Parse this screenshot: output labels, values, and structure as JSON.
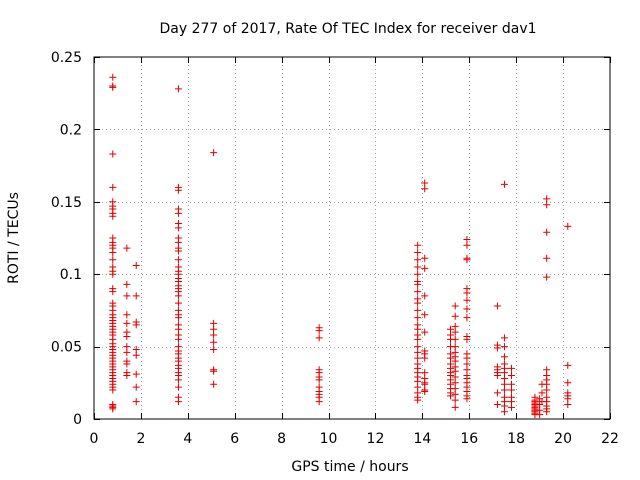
{
  "chart_data": {
    "type": "scatter",
    "title": "Day 277 of 2017, Rate Of TEC Index for receiver dav1",
    "xlabel": "GPS time / hours",
    "ylabel": "ROTI / TECUs",
    "xlim": [
      0,
      22
    ],
    "ylim": [
      0,
      0.25
    ],
    "xticks": [
      0,
      2,
      4,
      6,
      8,
      10,
      12,
      14,
      16,
      18,
      20,
      22
    ],
    "yticks": [
      0,
      0.05,
      0.1,
      0.15,
      0.2,
      0.25
    ],
    "xtick_labels": [
      "0",
      "2",
      "4",
      "6",
      "8",
      "10",
      "12",
      "14",
      "16",
      "18",
      "20",
      "22"
    ],
    "ytick_labels": [
      "0",
      "0.05",
      "0.1",
      "0.15",
      "0.2",
      "0.25"
    ],
    "grid": true,
    "marker": "+",
    "color": "#e00000",
    "series": [
      {
        "name": "ROTI",
        "points": [
          [
            0.8,
            0.236
          ],
          [
            0.8,
            0.23
          ],
          [
            0.8,
            0.229
          ],
          [
            0.8,
            0.183
          ],
          [
            0.8,
            0.16
          ],
          [
            0.8,
            0.15
          ],
          [
            0.8,
            0.147
          ],
          [
            0.8,
            0.145
          ],
          [
            0.8,
            0.142
          ],
          [
            0.8,
            0.14
          ],
          [
            0.8,
            0.125
          ],
          [
            0.8,
            0.122
          ],
          [
            0.8,
            0.12
          ],
          [
            0.8,
            0.118
          ],
          [
            0.8,
            0.115
          ],
          [
            0.8,
            0.11
          ],
          [
            0.8,
            0.105
          ],
          [
            0.8,
            0.102
          ],
          [
            0.8,
            0.1
          ],
          [
            0.8,
            0.09
          ],
          [
            0.8,
            0.088
          ],
          [
            0.8,
            0.08
          ],
          [
            0.8,
            0.078
          ],
          [
            0.8,
            0.075
          ],
          [
            0.8,
            0.072
          ],
          [
            0.8,
            0.07
          ],
          [
            0.8,
            0.068
          ],
          [
            0.8,
            0.066
          ],
          [
            0.8,
            0.064
          ],
          [
            0.8,
            0.062
          ],
          [
            0.8,
            0.06
          ],
          [
            0.8,
            0.058
          ],
          [
            0.8,
            0.055
          ],
          [
            0.8,
            0.052
          ],
          [
            0.8,
            0.05
          ],
          [
            0.8,
            0.048
          ],
          [
            0.8,
            0.046
          ],
          [
            0.8,
            0.044
          ],
          [
            0.8,
            0.042
          ],
          [
            0.8,
            0.04
          ],
          [
            0.8,
            0.038
          ],
          [
            0.8,
            0.036
          ],
          [
            0.8,
            0.034
          ],
          [
            0.8,
            0.032
          ],
          [
            0.8,
            0.03
          ],
          [
            0.8,
            0.028
          ],
          [
            0.8,
            0.026
          ],
          [
            0.8,
            0.024
          ],
          [
            0.8,
            0.022
          ],
          [
            0.8,
            0.02
          ],
          [
            0.8,
            0.01
          ],
          [
            0.8,
            0.009
          ],
          [
            0.8,
            0.008
          ],
          [
            0.8,
            0.007
          ],
          [
            1.4,
            0.118
          ],
          [
            1.4,
            0.093
          ],
          [
            1.4,
            0.085
          ],
          [
            1.4,
            0.072
          ],
          [
            1.4,
            0.066
          ],
          [
            1.4,
            0.06
          ],
          [
            1.4,
            0.057
          ],
          [
            1.4,
            0.05
          ],
          [
            1.4,
            0.046
          ],
          [
            1.4,
            0.04
          ],
          [
            1.4,
            0.038
          ],
          [
            1.4,
            0.032
          ],
          [
            1.4,
            0.03
          ],
          [
            1.8,
            0.106
          ],
          [
            1.8,
            0.085
          ],
          [
            1.8,
            0.067
          ],
          [
            1.8,
            0.065
          ],
          [
            1.8,
            0.048
          ],
          [
            1.8,
            0.044
          ],
          [
            1.8,
            0.031
          ],
          [
            1.8,
            0.022
          ],
          [
            1.8,
            0.012
          ],
          [
            3.6,
            0.228
          ],
          [
            3.6,
            0.16
          ],
          [
            3.6,
            0.158
          ],
          [
            3.6,
            0.145
          ],
          [
            3.6,
            0.142
          ],
          [
            3.6,
            0.135
          ],
          [
            3.6,
            0.132
          ],
          [
            3.6,
            0.125
          ],
          [
            3.6,
            0.122
          ],
          [
            3.6,
            0.118
          ],
          [
            3.6,
            0.116
          ],
          [
            3.6,
            0.11
          ],
          [
            3.6,
            0.105
          ],
          [
            3.6,
            0.102
          ],
          [
            3.6,
            0.1
          ],
          [
            3.6,
            0.097
          ],
          [
            3.6,
            0.095
          ],
          [
            3.6,
            0.092
          ],
          [
            3.6,
            0.09
          ],
          [
            3.6,
            0.088
          ],
          [
            3.6,
            0.085
          ],
          [
            3.6,
            0.08
          ],
          [
            3.6,
            0.075
          ],
          [
            3.6,
            0.072
          ],
          [
            3.6,
            0.07
          ],
          [
            3.6,
            0.065
          ],
          [
            3.6,
            0.062
          ],
          [
            3.6,
            0.058
          ],
          [
            3.6,
            0.055
          ],
          [
            3.6,
            0.05
          ],
          [
            3.6,
            0.047
          ],
          [
            3.6,
            0.045
          ],
          [
            3.6,
            0.042
          ],
          [
            3.6,
            0.04
          ],
          [
            3.6,
            0.037
          ],
          [
            3.6,
            0.035
          ],
          [
            3.6,
            0.032
          ],
          [
            3.6,
            0.03
          ],
          [
            3.6,
            0.027
          ],
          [
            3.6,
            0.022
          ],
          [
            3.6,
            0.015
          ],
          [
            3.6,
            0.012
          ],
          [
            5.1,
            0.184
          ],
          [
            5.1,
            0.066
          ],
          [
            5.1,
            0.062
          ],
          [
            5.1,
            0.058
          ],
          [
            5.1,
            0.053
          ],
          [
            5.1,
            0.048
          ],
          [
            5.1,
            0.034
          ],
          [
            5.1,
            0.033
          ],
          [
            5.1,
            0.024
          ],
          [
            9.6,
            0.063
          ],
          [
            9.6,
            0.061
          ],
          [
            9.6,
            0.056
          ],
          [
            9.6,
            0.034
          ],
          [
            9.6,
            0.032
          ],
          [
            9.6,
            0.029
          ],
          [
            9.6,
            0.027
          ],
          [
            9.6,
            0.022
          ],
          [
            9.6,
            0.019
          ],
          [
            9.6,
            0.017
          ],
          [
            9.6,
            0.015
          ],
          [
            9.6,
            0.012
          ],
          [
            13.8,
            0.12
          ],
          [
            13.8,
            0.115
          ],
          [
            13.8,
            0.11
          ],
          [
            13.8,
            0.105
          ],
          [
            13.8,
            0.1
          ],
          [
            13.8,
            0.095
          ],
          [
            13.8,
            0.093
          ],
          [
            13.8,
            0.088
          ],
          [
            13.8,
            0.083
          ],
          [
            13.8,
            0.08
          ],
          [
            13.8,
            0.075
          ],
          [
            13.8,
            0.07
          ],
          [
            13.8,
            0.065
          ],
          [
            13.8,
            0.062
          ],
          [
            13.8,
            0.058
          ],
          [
            13.8,
            0.055
          ],
          [
            13.8,
            0.05
          ],
          [
            13.8,
            0.046
          ],
          [
            13.8,
            0.042
          ],
          [
            13.8,
            0.038
          ],
          [
            13.8,
            0.035
          ],
          [
            13.8,
            0.032
          ],
          [
            13.8,
            0.029
          ],
          [
            13.8,
            0.026
          ],
          [
            13.8,
            0.022
          ],
          [
            13.8,
            0.018
          ],
          [
            13.8,
            0.015
          ],
          [
            13.8,
            0.013
          ],
          [
            14.1,
            0.163
          ],
          [
            14.1,
            0.159
          ],
          [
            14.1,
            0.111
          ],
          [
            14.1,
            0.104
          ],
          [
            14.1,
            0.085
          ],
          [
            14.1,
            0.072
          ],
          [
            14.1,
            0.06
          ],
          [
            14.1,
            0.047
          ],
          [
            14.1,
            0.045
          ],
          [
            14.1,
            0.042
          ],
          [
            14.1,
            0.032
          ],
          [
            14.1,
            0.028
          ],
          [
            14.1,
            0.025
          ],
          [
            14.1,
            0.024
          ],
          [
            14.1,
            0.02
          ],
          [
            14.1,
            0.019
          ],
          [
            15.2,
            0.062
          ],
          [
            15.2,
            0.058
          ],
          [
            15.2,
            0.055
          ],
          [
            15.2,
            0.05
          ],
          [
            15.2,
            0.045
          ],
          [
            15.2,
            0.042
          ],
          [
            15.2,
            0.038
          ],
          [
            15.2,
            0.035
          ],
          [
            15.2,
            0.032
          ],
          [
            15.2,
            0.03
          ],
          [
            15.2,
            0.027
          ],
          [
            15.2,
            0.024
          ],
          [
            15.2,
            0.021
          ],
          [
            15.2,
            0.018
          ],
          [
            15.2,
            0.016
          ],
          [
            15.4,
            0.078
          ],
          [
            15.4,
            0.071
          ],
          [
            15.4,
            0.064
          ],
          [
            15.4,
            0.06
          ],
          [
            15.4,
            0.055
          ],
          [
            15.4,
            0.05
          ],
          [
            15.4,
            0.046
          ],
          [
            15.4,
            0.043
          ],
          [
            15.4,
            0.04
          ],
          [
            15.4,
            0.036
          ],
          [
            15.4,
            0.033
          ],
          [
            15.4,
            0.029
          ],
          [
            15.4,
            0.025
          ],
          [
            15.4,
            0.021
          ],
          [
            15.4,
            0.017
          ],
          [
            15.4,
            0.013
          ],
          [
            15.4,
            0.008
          ],
          [
            15.9,
            0.124
          ],
          [
            15.9,
            0.12
          ],
          [
            15.9,
            0.111
          ],
          [
            15.9,
            0.11
          ],
          [
            15.9,
            0.09
          ],
          [
            15.9,
            0.087
          ],
          [
            15.9,
            0.082
          ],
          [
            15.9,
            0.076
          ],
          [
            15.9,
            0.07
          ],
          [
            15.9,
            0.057
          ],
          [
            15.9,
            0.055
          ],
          [
            15.9,
            0.045
          ],
          [
            15.9,
            0.042
          ],
          [
            15.9,
            0.038
          ],
          [
            15.9,
            0.034
          ],
          [
            15.9,
            0.03
          ],
          [
            15.9,
            0.028
          ],
          [
            15.9,
            0.025
          ],
          [
            15.9,
            0.022
          ],
          [
            15.9,
            0.019
          ],
          [
            15.9,
            0.016
          ],
          [
            15.9,
            0.014
          ],
          [
            17.2,
            0.078
          ],
          [
            17.2,
            0.051
          ],
          [
            17.2,
            0.049
          ],
          [
            17.2,
            0.036
          ],
          [
            17.2,
            0.034
          ],
          [
            17.2,
            0.032
          ],
          [
            17.2,
            0.03
          ],
          [
            17.2,
            0.018
          ],
          [
            17.2,
            0.01
          ],
          [
            17.5,
            0.162
          ],
          [
            17.5,
            0.056
          ],
          [
            17.5,
            0.05
          ],
          [
            17.5,
            0.043
          ],
          [
            17.5,
            0.038
          ],
          [
            17.5,
            0.035
          ],
          [
            17.5,
            0.032
          ],
          [
            17.5,
            0.028
          ],
          [
            17.5,
            0.024
          ],
          [
            17.5,
            0.02
          ],
          [
            17.5,
            0.015
          ],
          [
            17.5,
            0.012
          ],
          [
            17.5,
            0.009
          ],
          [
            17.5,
            0.005
          ],
          [
            17.8,
            0.035
          ],
          [
            17.8,
            0.03
          ],
          [
            17.8,
            0.024
          ],
          [
            17.8,
            0.02
          ],
          [
            17.8,
            0.015
          ],
          [
            17.8,
            0.012
          ],
          [
            17.8,
            0.008
          ],
          [
            18.8,
            0.015
          ],
          [
            18.8,
            0.013
          ],
          [
            18.8,
            0.012
          ],
          [
            18.8,
            0.011
          ],
          [
            18.8,
            0.01
          ],
          [
            18.8,
            0.009
          ],
          [
            18.8,
            0.008
          ],
          [
            18.8,
            0.007
          ],
          [
            18.8,
            0.006
          ],
          [
            18.8,
            0.005
          ],
          [
            18.8,
            0.004
          ],
          [
            18.8,
            0.003
          ],
          [
            19.0,
            0.014
          ],
          [
            19.0,
            0.01
          ],
          [
            19.0,
            0.006
          ],
          [
            19.0,
            0.003
          ],
          [
            19.3,
            0.152
          ],
          [
            19.3,
            0.148
          ],
          [
            19.3,
            0.129
          ],
          [
            19.3,
            0.111
          ],
          [
            19.3,
            0.098
          ],
          [
            19.3,
            0.034
          ],
          [
            19.3,
            0.03
          ],
          [
            19.3,
            0.027
          ],
          [
            19.3,
            0.024
          ],
          [
            19.3,
            0.02
          ],
          [
            19.3,
            0.015
          ],
          [
            19.3,
            0.012
          ],
          [
            19.3,
            0.009
          ],
          [
            19.3,
            0.007
          ],
          [
            19.3,
            0.005
          ],
          [
            19.1,
            0.024
          ],
          [
            19.1,
            0.018
          ],
          [
            19.1,
            0.012
          ],
          [
            20.2,
            0.133
          ],
          [
            20.2,
            0.037
          ],
          [
            20.2,
            0.025
          ],
          [
            20.2,
            0.018
          ],
          [
            20.2,
            0.016
          ],
          [
            20.2,
            0.014
          ],
          [
            20.2,
            0.01
          ]
        ]
      }
    ]
  }
}
